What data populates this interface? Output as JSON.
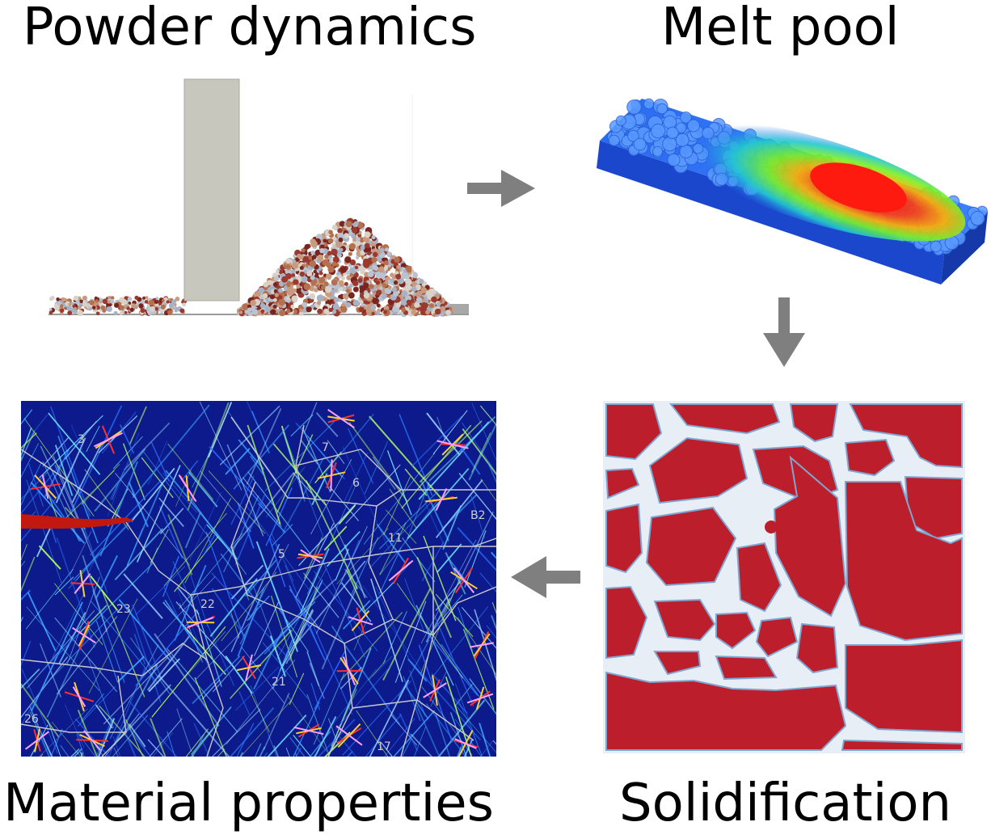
{
  "labels": {
    "powder_dynamics": "Powder dynamics",
    "melt_pool": "Melt pool",
    "solidification": "Solidification",
    "material_properties": "Material properties"
  },
  "grain_labels": [
    "3",
    "7",
    "6",
    "B2",
    "11",
    "5",
    "23",
    "22",
    "21",
    "26",
    "17"
  ],
  "colors": {
    "arrow": "#7f7f7f",
    "powder_blade": "#c7c7bd",
    "melt_substrate": "#1f4fd6",
    "melt_hot": "#ff1a10",
    "solid_grain": "#bc1f2b",
    "solid_boundary": "#e7eef6",
    "micro_background": "#0c1a8c"
  }
}
